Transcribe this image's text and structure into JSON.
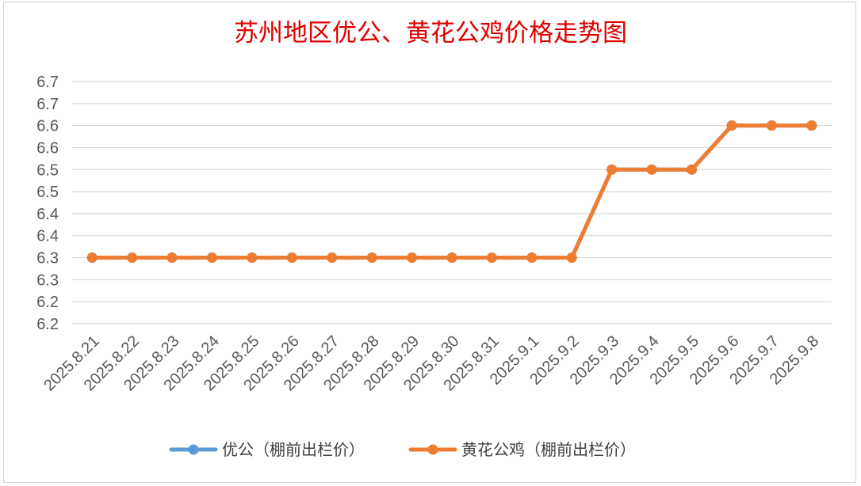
{
  "chart_data": {
    "type": "line",
    "title": "苏州地区优公、黄花公鸡价格走势图",
    "xlabel": "",
    "ylabel": "",
    "categories": [
      "2025.8.21",
      "2025.8.22",
      "2025.8.23",
      "2025.8.24",
      "2025.8.25",
      "2025.8.26",
      "2025.8.27",
      "2025.8.28",
      "2025.8.29",
      "2025.8.30",
      "2025.8.31",
      "2025.9.1",
      "2025.9.2",
      "2025.9.3",
      "2025.9.4",
      "2025.9.5",
      "2025.9.6",
      "2025.9.7",
      "2025.9.8"
    ],
    "ylim": [
      6.15,
      6.7
    ],
    "yticks": [
      6.15,
      6.2,
      6.25,
      6.3,
      6.35,
      6.4,
      6.45,
      6.5,
      6.55,
      6.6,
      6.65,
      6.7
    ],
    "ytick_labels": [
      "6.2",
      "6.2",
      "6.3",
      "6.3",
      "6.4",
      "6.4",
      "6.5",
      "6.5",
      "6.6",
      "6.6",
      "6.7",
      "6.7"
    ],
    "grid": true,
    "legend_position": "bottom",
    "series": [
      {
        "name": "优公（棚前出栏价）",
        "color": "#5b9bd5",
        "values": [
          6.3,
          6.3,
          6.3,
          6.3,
          6.3,
          6.3,
          6.3,
          6.3,
          6.3,
          6.3,
          6.3,
          6.3,
          6.3,
          6.5,
          6.5,
          6.5,
          6.6,
          6.6,
          6.6
        ]
      },
      {
        "name": "黄花公鸡（棚前出栏价）",
        "color": "#ed7d31",
        "values": [
          6.3,
          6.3,
          6.3,
          6.3,
          6.3,
          6.3,
          6.3,
          6.3,
          6.3,
          6.3,
          6.3,
          6.3,
          6.3,
          6.5,
          6.5,
          6.5,
          6.6,
          6.6,
          6.6
        ]
      }
    ]
  }
}
